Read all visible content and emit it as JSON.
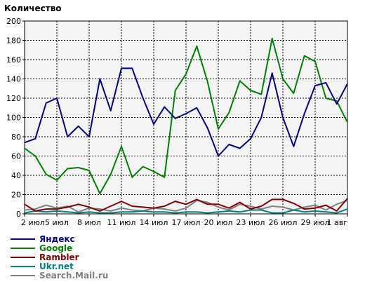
{
  "chart_data": {
    "type": "line",
    "title": "Количество",
    "xlabel": "",
    "ylabel": "",
    "ylim": [
      0,
      200
    ],
    "y_ticks": [
      0,
      20,
      40,
      60,
      80,
      100,
      120,
      140,
      160,
      180,
      200
    ],
    "grid": true,
    "legend_position": "bottom-left",
    "x_tick_labels": [
      "2 июл",
      "5 июл",
      "8 июл",
      "11 июл",
      "14 июл",
      "17 июл",
      "20 июл",
      "23 июл",
      "26 июл",
      "29 июл",
      "1 авг"
    ],
    "x": [
      "2 июл",
      "3 июл",
      "4 июл",
      "5 июл",
      "6 июл",
      "7 июл",
      "8 июл",
      "9 июл",
      "10 июл",
      "11 июл",
      "12 июл",
      "13 июл",
      "14 июл",
      "15 июл",
      "16 июл",
      "17 июл",
      "18 июл",
      "19 июл",
      "20 июл",
      "21 июл",
      "22 июл",
      "23 июл",
      "24 июл",
      "25 июл",
      "26 июл",
      "27 июл",
      "28 июл",
      "29 июл",
      "30 июл",
      "31 июл",
      "1 авг"
    ],
    "series": [
      {
        "name": "Яндекс",
        "color": "#000080",
        "values": [
          74,
          78,
          115,
          120,
          80,
          91,
          80,
          140,
          107,
          151,
          151,
          120,
          93,
          111,
          99,
          104,
          110,
          89,
          60,
          72,
          68,
          78,
          100,
          146,
          100,
          70,
          104,
          133,
          136,
          114,
          135
        ]
      },
      {
        "name": "Google",
        "color": "#008000",
        "values": [
          68,
          60,
          41,
          35,
          47,
          48,
          45,
          21,
          41,
          70,
          38,
          49,
          44,
          38,
          128,
          145,
          174,
          137,
          88,
          105,
          138,
          128,
          124,
          182,
          140,
          125,
          164,
          158,
          120,
          117,
          95
        ]
      },
      {
        "name": "Rambler",
        "color": "#800000",
        "values": [
          10,
          3,
          5,
          5,
          7,
          10,
          7,
          3,
          8,
          13,
          8,
          7,
          6,
          8,
          13,
          10,
          15,
          10,
          10,
          6,
          12,
          5,
          8,
          15,
          15,
          11,
          5,
          6,
          9,
          3,
          16
        ]
      },
      {
        "name": "Ukr.net",
        "color": "#008080",
        "values": [
          1,
          3,
          2,
          3,
          2,
          1,
          2,
          1,
          1,
          2,
          2,
          3,
          2,
          2,
          1,
          2,
          2,
          1,
          2,
          3,
          2,
          4,
          4,
          1,
          1,
          4,
          2,
          3,
          2,
          1,
          5
        ]
      },
      {
        "name": "Search.Mail.ru",
        "color": "#808080",
        "values": [
          4,
          5,
          9,
          6,
          8,
          2,
          6,
          5,
          3,
          6,
          4,
          3,
          6,
          5,
          3,
          6,
          14,
          12,
          7,
          4,
          10,
          8,
          5,
          8,
          7,
          4,
          7,
          9,
          4,
          10,
          14
        ]
      }
    ]
  }
}
